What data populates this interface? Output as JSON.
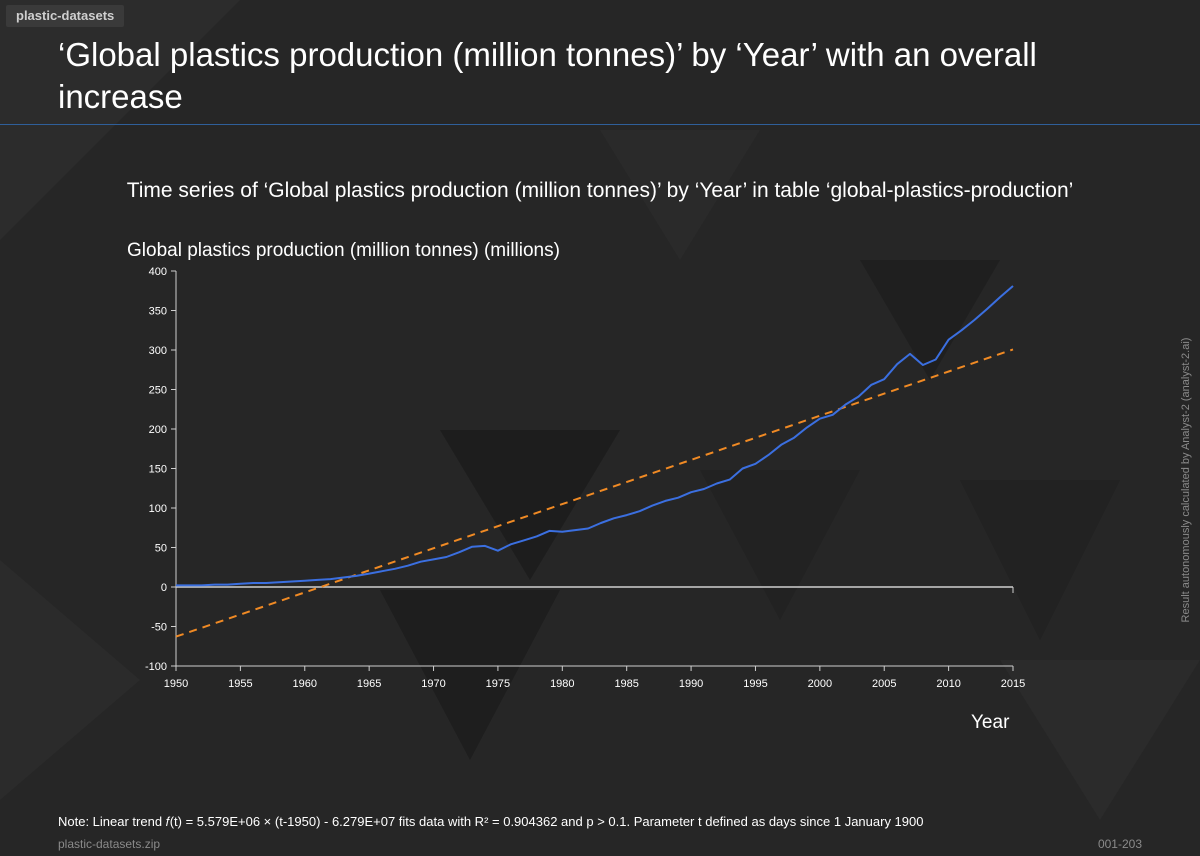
{
  "tag": "plastic-datasets",
  "headline": "‘Global plastics production (million tonnes)’ by ‘Year’ with an overall increase",
  "side_note": "Result autonomously calculated by Analyst-2 (analyst-2.ai)",
  "note": "Note: Linear trend 𝑓(t) = 5.579E+06 × (t-1950) - 6.279E+07 fits data with R² = 0.904362 and p > 0.1. Parameter t defined as days since 1 January 1900",
  "footer": {
    "left": "plastic-datasets.zip",
    "right": "001-203"
  },
  "colors": {
    "series": "#3b6fe0",
    "trend": "#f08a24",
    "axis": "#cfcfcf"
  },
  "chart_data": {
    "type": "line",
    "title": "Time series of ‘Global plastics production (million tonnes)’ by ‘Year’ in table ‘global-plastics-production’",
    "ylabel": "Global plastics production (million tonnes) (millions)",
    "xlabel": "Year",
    "xlim": [
      1950,
      2015
    ],
    "ylim": [
      -100,
      400
    ],
    "xticks": [
      1950,
      1955,
      1960,
      1965,
      1970,
      1975,
      1980,
      1985,
      1990,
      1995,
      2000,
      2005,
      2010,
      2015
    ],
    "yticks": [
      -100,
      -50,
      0,
      50,
      100,
      150,
      200,
      250,
      300,
      350,
      400
    ],
    "grid": false,
    "series": [
      {
        "x": [
          1950,
          1951,
          1952,
          1953,
          1954,
          1955,
          1956,
          1957,
          1958,
          1959,
          1960,
          1961,
          1962,
          1963,
          1964,
          1965,
          1966,
          1967,
          1968,
          1969,
          1970,
          1971,
          1972,
          1973,
          1974,
          1975,
          1976,
          1977,
          1978,
          1979,
          1980,
          1981,
          1982,
          1983,
          1984,
          1985,
          1986,
          1987,
          1988,
          1989,
          1990,
          1991,
          1992,
          1993,
          1994,
          1995,
          1996,
          1997,
          1998,
          1999,
          2000,
          2001,
          2002,
          2003,
          2004,
          2005,
          2006,
          2007,
          2008,
          2009,
          2010,
          2011,
          2012,
          2013,
          2014,
          2015
        ],
        "values": [
          2,
          2,
          2,
          3,
          3,
          4,
          5,
          5,
          6,
          7,
          8,
          9,
          10,
          12,
          14,
          17,
          20,
          23,
          27,
          32,
          35,
          38,
          44,
          51,
          52,
          46,
          54,
          59,
          64,
          71,
          70,
          72,
          74,
          81,
          87,
          91,
          96,
          103,
          109,
          113,
          120,
          124,
          131,
          136,
          150,
          156,
          167,
          180,
          189,
          202,
          213,
          218,
          231,
          241,
          256,
          263,
          282,
          295,
          281,
          288,
          313,
          325,
          338,
          352,
          367,
          381
        ]
      },
      {
        "style": "dashed-trend",
        "x": [
          1950,
          2015
        ],
        "values": [
          -62.8,
          300.7
        ]
      }
    ]
  }
}
